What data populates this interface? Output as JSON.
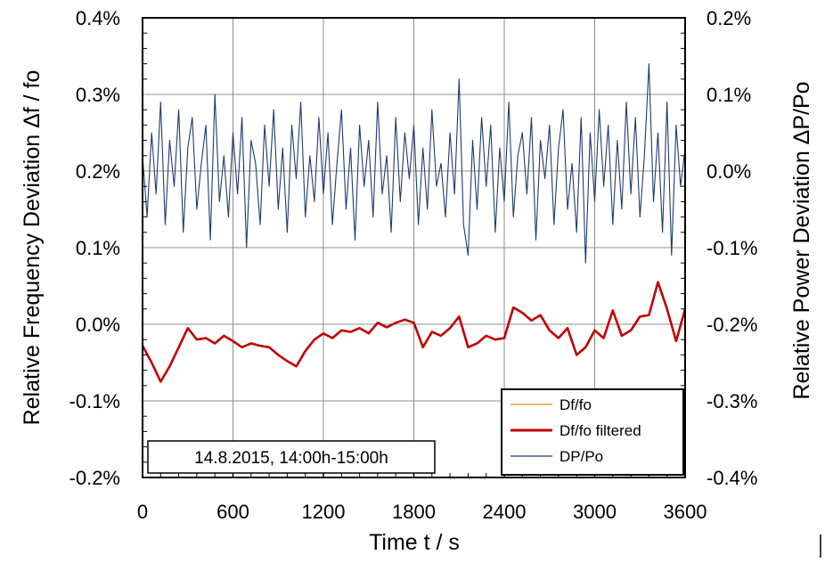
{
  "chart_data": {
    "type": "line",
    "xlabel": "Time  t / s",
    "ylabel_left": "Relative Frequency Deviation Δf / fo",
    "ylabel_right": "Relative Power Deviation ΔP/Po",
    "annotation": "14.8.2015, 14:00h-15:00h",
    "xlim": [
      0,
      3600
    ],
    "ylim_left": [
      -0.2,
      0.4
    ],
    "ylim_right": [
      -0.4,
      0.2
    ],
    "x_ticks": [
      "0",
      "600",
      "1200",
      "1800",
      "2400",
      "3000",
      "3600"
    ],
    "y_ticks_left": [
      "-0.2%",
      "-0.1%",
      "0.0%",
      "0.1%",
      "0.2%",
      "0.3%",
      "0.4%"
    ],
    "y_ticks_right": [
      "-0.4%",
      "-0.3%",
      "-0.2%",
      "-0.1%",
      "0.0%",
      "0.1%",
      "0.2%"
    ],
    "grid": true,
    "legend_position": "bottom-right",
    "series": [
      {
        "name": "Df/fo",
        "axis": "left",
        "color": "#f0a030",
        "x": [
          0,
          60,
          120,
          180,
          240,
          300,
          360,
          420,
          480,
          540,
          600,
          660,
          720,
          780,
          840,
          900,
          960,
          1020,
          1080,
          1140,
          1200,
          1260,
          1320,
          1380,
          1440,
          1500,
          1560,
          1620,
          1680,
          1740,
          1800,
          1860,
          1920,
          1980,
          2040,
          2100,
          2160,
          2220,
          2280,
          2340,
          2400,
          2460,
          2520,
          2580,
          2640,
          2700,
          2760,
          2820,
          2880,
          2940,
          3000,
          3060,
          3120,
          3180,
          3240,
          3300,
          3360,
          3420,
          3480,
          3540,
          3600
        ],
        "y": [
          -0.028,
          -0.05,
          -0.075,
          -0.055,
          -0.03,
          -0.005,
          -0.02,
          -0.018,
          -0.025,
          -0.015,
          -0.022,
          -0.03,
          -0.025,
          -0.028,
          -0.03,
          -0.04,
          -0.048,
          -0.055,
          -0.035,
          -0.02,
          -0.012,
          -0.018,
          -0.008,
          -0.01,
          -0.005,
          -0.012,
          0.002,
          -0.004,
          0.002,
          0.006,
          0.002,
          -0.03,
          -0.01,
          -0.015,
          -0.005,
          0.01,
          -0.03,
          -0.025,
          -0.015,
          -0.02,
          -0.018,
          0.022,
          0.015,
          0.005,
          0.012,
          -0.008,
          -0.018,
          -0.005,
          -0.04,
          -0.03,
          -0.008,
          -0.018,
          0.018,
          -0.015,
          -0.008,
          0.01,
          0.012,
          0.055,
          0.02,
          -0.022,
          0.02
        ]
      },
      {
        "name": "Df/fo filtered",
        "axis": "left",
        "color": "#c00000",
        "x": [
          0,
          60,
          120,
          180,
          240,
          300,
          360,
          420,
          480,
          540,
          600,
          660,
          720,
          780,
          840,
          900,
          960,
          1020,
          1080,
          1140,
          1200,
          1260,
          1320,
          1380,
          1440,
          1500,
          1560,
          1620,
          1680,
          1740,
          1800,
          1860,
          1920,
          1980,
          2040,
          2100,
          2160,
          2220,
          2280,
          2340,
          2400,
          2460,
          2520,
          2580,
          2640,
          2700,
          2760,
          2820,
          2880,
          2940,
          3000,
          3060,
          3120,
          3180,
          3240,
          3300,
          3360,
          3420,
          3480,
          3540,
          3600
        ],
        "y": [
          -0.028,
          -0.05,
          -0.075,
          -0.055,
          -0.03,
          -0.005,
          -0.02,
          -0.018,
          -0.025,
          -0.015,
          -0.022,
          -0.03,
          -0.025,
          -0.028,
          -0.03,
          -0.04,
          -0.048,
          -0.055,
          -0.035,
          -0.02,
          -0.012,
          -0.018,
          -0.008,
          -0.01,
          -0.005,
          -0.012,
          0.002,
          -0.004,
          0.002,
          0.006,
          0.002,
          -0.03,
          -0.01,
          -0.015,
          -0.005,
          0.01,
          -0.03,
          -0.025,
          -0.015,
          -0.02,
          -0.018,
          0.022,
          0.015,
          0.005,
          0.012,
          -0.008,
          -0.018,
          -0.005,
          -0.04,
          -0.03,
          -0.008,
          -0.018,
          0.018,
          -0.015,
          -0.008,
          0.01,
          0.012,
          0.055,
          0.02,
          -0.022,
          0.02
        ]
      },
      {
        "name": "DP/Po",
        "axis": "right",
        "color": "#1f3a6e",
        "x": [
          0,
          30,
          60,
          90,
          120,
          150,
          180,
          210,
          240,
          270,
          300,
          330,
          360,
          390,
          420,
          450,
          480,
          510,
          540,
          570,
          600,
          630,
          660,
          690,
          720,
          750,
          780,
          810,
          840,
          870,
          900,
          930,
          960,
          990,
          1020,
          1050,
          1080,
          1110,
          1140,
          1170,
          1200,
          1230,
          1260,
          1290,
          1320,
          1350,
          1380,
          1410,
          1440,
          1470,
          1500,
          1530,
          1560,
          1590,
          1620,
          1650,
          1680,
          1710,
          1740,
          1770,
          1800,
          1830,
          1860,
          1890,
          1920,
          1950,
          1980,
          2010,
          2040,
          2070,
          2100,
          2130,
          2160,
          2190,
          2220,
          2250,
          2280,
          2310,
          2340,
          2370,
          2400,
          2430,
          2460,
          2490,
          2520,
          2550,
          2580,
          2610,
          2640,
          2670,
          2700,
          2730,
          2760,
          2790,
          2820,
          2850,
          2880,
          2910,
          2940,
          2970,
          3000,
          3030,
          3060,
          3090,
          3120,
          3150,
          3180,
          3210,
          3240,
          3270,
          3300,
          3330,
          3360,
          3390,
          3420,
          3450,
          3480,
          3510,
          3540,
          3570,
          3600
        ],
        "y": [
          0.02,
          -0.06,
          0.05,
          -0.03,
          0.09,
          -0.07,
          0.04,
          -0.02,
          0.08,
          -0.08,
          0.03,
          0.07,
          -0.05,
          0.01,
          0.06,
          -0.09,
          0.1,
          -0.04,
          0.02,
          -0.06,
          0.05,
          -0.03,
          0.07,
          -0.1,
          0.04,
          0.01,
          -0.07,
          0.06,
          -0.02,
          0.08,
          -0.05,
          0.03,
          -0.08,
          0.06,
          -0.01,
          0.09,
          -0.06,
          0.02,
          -0.04,
          0.07,
          -0.03,
          0.05,
          -0.07,
          0.01,
          0.08,
          -0.05,
          0.03,
          -0.09,
          0.06,
          -0.02,
          0.04,
          -0.06,
          0.09,
          -0.03,
          0.02,
          -0.08,
          0.07,
          -0.04,
          0.05,
          -0.01,
          0.06,
          -0.07,
          0.03,
          -0.05,
          0.08,
          -0.02,
          0.01,
          -0.06,
          0.05,
          -0.03,
          0.12,
          -0.07,
          -0.11,
          0.04,
          -0.05,
          0.07,
          -0.02,
          0.06,
          -0.08,
          0.03,
          -0.04,
          0.09,
          -0.06,
          0.02,
          0.05,
          -0.03,
          0.07,
          -0.09,
          0.04,
          -0.01,
          0.06,
          -0.07,
          0.03,
          0.08,
          -0.05,
          0.01,
          -0.08,
          0.07,
          -0.12,
          0.05,
          -0.04,
          0.08,
          -0.02,
          0.06,
          -0.07,
          0.04,
          -0.05,
          0.09,
          -0.03,
          0.07,
          -0.06,
          0.02,
          0.14,
          -0.04,
          0.05,
          -0.08,
          0.09,
          -0.11,
          0.06,
          -0.02,
          0.03
        ]
      }
    ]
  }
}
